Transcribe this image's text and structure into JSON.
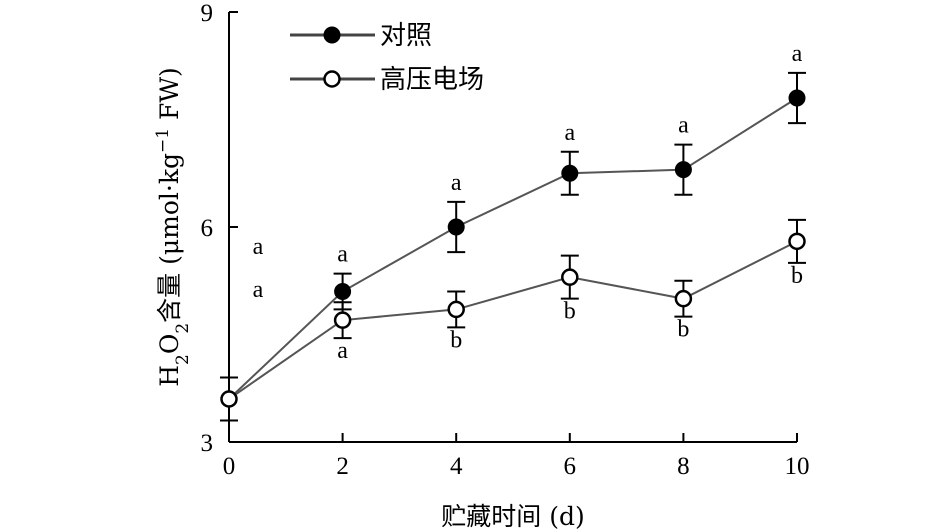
{
  "chart_data": {
    "type": "line",
    "x": [
      0,
      2,
      4,
      6,
      8,
      10
    ],
    "xlabel": "贮藏时间 (d)",
    "ylabel": "H2O2含量 (μmol·kg-1 FW)",
    "ylabel_parts": {
      "h": "H",
      "sub2a": "2",
      "o": "O",
      "sub2b": "2",
      "cn": "含量",
      "unit_pre": " (μmol·kg",
      "sup": "−1",
      "unit_post": " FW)"
    },
    "xlim": [
      0,
      10
    ],
    "ylim": [
      3,
      9
    ],
    "xticks": [
      "0",
      "2",
      "4",
      "6",
      "8",
      "10"
    ],
    "yticks": [
      "3",
      "6",
      "9"
    ],
    "legend_position": "top-left",
    "series": [
      {
        "name": "对照",
        "marker": "filled-circle",
        "values": [
          3.6,
          5.1,
          6.0,
          6.75,
          6.8,
          7.8
        ],
        "errors": [
          0.3,
          0.25,
          0.35,
          0.3,
          0.35,
          0.35
        ],
        "sig_labels": [
          "a",
          "a",
          "a",
          "a",
          "a",
          "a"
        ]
      },
      {
        "name": "高压电场",
        "marker": "open-circle",
        "values": [
          3.6,
          4.7,
          4.85,
          5.3,
          5.0,
          5.8
        ],
        "errors": [
          0.3,
          0.25,
          0.25,
          0.3,
          0.25,
          0.3
        ],
        "sig_labels": [
          "a",
          "a",
          "b",
          "b",
          "b",
          "b"
        ]
      }
    ]
  }
}
